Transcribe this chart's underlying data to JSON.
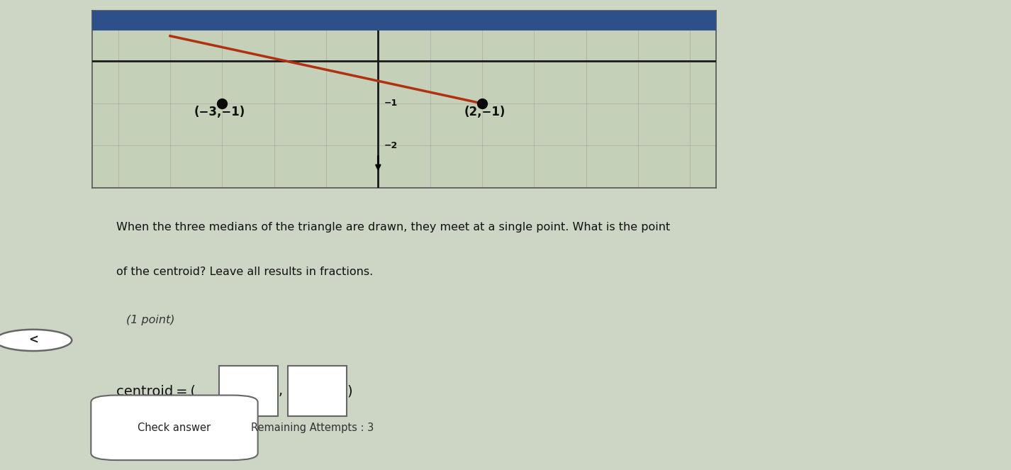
{
  "bg_color": "#cdd5c5",
  "graph_bg": "#c5d0b8",
  "graph_border": "#888888",
  "title_bar_color": "#2d4f8a",
  "point1": [
    -3,
    -1
  ],
  "point1_label": "(−3,−1)",
  "point2": [
    2,
    -1
  ],
  "point2_label": "(2,−1)",
  "axis_color": "#1a1a1a",
  "grid_color": "#999999",
  "line_color": "#b03010",
  "dot_color": "#0a0a0a",
  "question_text1": "When the three medians of the triangle are drawn, they meet at a single point. What is the point",
  "question_text2": "of the centroid? Leave all results in fractions.",
  "point_label": "(1 point)",
  "check_button": "Check answer",
  "remaining_text": "Remaining Attempts : 3",
  "overall_bg": "#cdd5c5",
  "text_bg": "#cdd5c5",
  "bottom_strip_bg": "#b8bfb2"
}
